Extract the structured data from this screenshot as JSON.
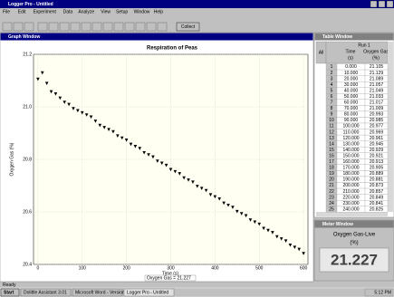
{
  "window": {
    "title": "Logger Pro - Untitled",
    "menu": [
      "File",
      "Edit",
      "Experiment",
      "Data",
      "Analyze",
      "View",
      "Setup",
      "Window",
      "Help"
    ],
    "collect": "Collect",
    "status": "Ready"
  },
  "graph_window": {
    "title": "Graph Window",
    "readout": "Oxygen Gas = 21.227"
  },
  "chart_data": {
    "type": "scatter",
    "title": "Respiration of Peas",
    "x_label": "Time (s)",
    "y_label": "Oxygen Gas (%)",
    "marker": "triangle",
    "color": "#000000",
    "x": [
      0,
      10,
      20,
      30,
      40,
      50,
      60,
      70,
      80,
      90,
      100,
      110,
      120,
      130,
      140,
      150,
      160,
      170,
      180,
      190,
      200,
      210,
      220,
      230,
      240,
      250,
      260,
      270,
      280,
      290,
      300,
      310,
      320,
      330,
      340,
      350,
      360,
      370,
      380,
      390,
      400,
      410,
      420,
      430,
      440,
      450,
      460,
      470,
      480,
      490,
      500,
      510,
      520,
      530,
      540,
      550,
      560,
      570,
      580,
      590,
      600
    ],
    "values": [
      21.105,
      21.129,
      21.089,
      21.057,
      21.049,
      21.033,
      21.017,
      21.009,
      20.993,
      20.985,
      20.977,
      20.969,
      20.961,
      20.945,
      20.929,
      20.921,
      20.913,
      20.905,
      20.889,
      20.881,
      20.873,
      20.857,
      20.849,
      20.841,
      20.825,
      20.817,
      20.809,
      20.793,
      20.785,
      20.777,
      20.761,
      20.753,
      20.745,
      20.729,
      20.721,
      20.713,
      20.697,
      20.689,
      20.681,
      20.665,
      20.657,
      20.649,
      20.633,
      20.625,
      20.617,
      20.601,
      20.593,
      20.585,
      20.569,
      20.561,
      20.553,
      20.537,
      20.529,
      20.521,
      20.505,
      20.497,
      20.489,
      20.473,
      20.465,
      20.457,
      20.441
    ],
    "xlim": [
      -10,
      610
    ],
    "ylim": [
      20.4,
      21.2
    ],
    "xticks": [
      0,
      100,
      200,
      300,
      400,
      500,
      600
    ],
    "yticks": [
      20.4,
      20.6,
      20.8,
      {
        "value": 21,
        "label": "21.0"
      },
      21.2
    ],
    "grid": true
  },
  "table_window": {
    "title": "Table Window",
    "all": "All",
    "run": "Run 1",
    "columns": [
      [
        "Time",
        "(s)"
      ],
      [
        "Oxygen Gas",
        "(%)"
      ]
    ],
    "rows": [
      [
        "1",
        "0.000",
        "21.105"
      ],
      [
        "2",
        "10.000",
        "21.129"
      ],
      [
        "3",
        "20.000",
        "21.089"
      ],
      [
        "4",
        "30.000",
        "21.057"
      ],
      [
        "5",
        "40.000",
        "21.049"
      ],
      [
        "6",
        "50.000",
        "21.033"
      ],
      [
        "7",
        "60.000",
        "21.017"
      ],
      [
        "8",
        "70.000",
        "21.009"
      ],
      [
        "9",
        "80.000",
        "20.993"
      ],
      [
        "10",
        "90.000",
        "20.985"
      ],
      [
        "11",
        "100.000",
        "20.977"
      ],
      [
        "12",
        "110.000",
        "20.969"
      ],
      [
        "13",
        "120.000",
        "20.961"
      ],
      [
        "14",
        "130.000",
        "20.945"
      ],
      [
        "15",
        "140.000",
        "20.929"
      ],
      [
        "16",
        "150.000",
        "20.921"
      ],
      [
        "17",
        "160.000",
        "20.913"
      ],
      [
        "18",
        "170.000",
        "20.905"
      ],
      [
        "19",
        "180.000",
        "20.889"
      ],
      [
        "20",
        "190.000",
        "20.881"
      ],
      [
        "21",
        "200.000",
        "20.873"
      ],
      [
        "22",
        "210.000",
        "20.857"
      ],
      [
        "23",
        "220.000",
        "20.849"
      ],
      [
        "24",
        "230.000",
        "20.841"
      ],
      [
        "25",
        "240.000",
        "20.825"
      ]
    ]
  },
  "meter_window": {
    "title": "Meter Window",
    "label": "Oxygen Gas-Live",
    "unit": "(%)",
    "value": "21.227"
  },
  "taskbar": {
    "start": "Start",
    "tasks": [
      "Dolittle Assistant 3.01",
      "Microsoft Word - Version 6",
      "Logger Pro - Untitled"
    ],
    "clock": "5:12 PM"
  }
}
